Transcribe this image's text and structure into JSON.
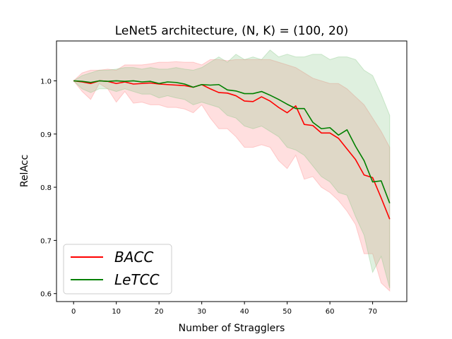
{
  "chart_data": {
    "type": "line",
    "title": "LeNet5 architecture, (N, K) = (100, 20)",
    "xlabel": "Number of Stragglers",
    "ylabel": "RelAcc",
    "xlim": [
      -4,
      78
    ],
    "ylim": [
      0.585,
      1.075
    ],
    "xticks": [
      0,
      10,
      20,
      30,
      40,
      50,
      60,
      70
    ],
    "yticks": [
      0.6,
      0.7,
      0.8,
      0.9,
      1.0
    ],
    "ytick_labels": [
      "0.6",
      "0.7",
      "0.8",
      "0.9",
      "1.0"
    ],
    "grid": false,
    "legend_position": "lower-left",
    "x": [
      0,
      2,
      4,
      6,
      8,
      10,
      12,
      14,
      16,
      18,
      20,
      22,
      24,
      26,
      28,
      30,
      32,
      34,
      36,
      38,
      40,
      42,
      44,
      46,
      48,
      50,
      52,
      54,
      56,
      58,
      60,
      62,
      64,
      66,
      68,
      70,
      72,
      74
    ],
    "series": [
      {
        "name": "BACC",
        "color": "#ff0000",
        "band_color": "#ff8080",
        "values": [
          1.0,
          0.998,
          0.995,
          1.0,
          0.999,
          0.995,
          0.998,
          0.994,
          0.995,
          0.996,
          0.994,
          0.993,
          0.992,
          0.991,
          0.988,
          0.993,
          0.985,
          0.978,
          0.977,
          0.972,
          0.962,
          0.961,
          0.97,
          0.962,
          0.95,
          0.94,
          0.953,
          0.918,
          0.916,
          0.902,
          0.902,
          0.892,
          0.872,
          0.852,
          0.823,
          0.818,
          0.78,
          0.74
        ],
        "upper": [
          1.0,
          1.015,
          1.02,
          1.02,
          1.022,
          1.02,
          1.03,
          1.03,
          1.03,
          1.032,
          1.035,
          1.035,
          1.036,
          1.035,
          1.035,
          1.03,
          1.04,
          1.04,
          1.038,
          1.04,
          1.04,
          1.04,
          1.04,
          1.04,
          1.035,
          1.03,
          1.025,
          1.015,
          1.005,
          1.0,
          0.995,
          0.995,
          0.985,
          0.97,
          0.955,
          0.93,
          0.905,
          0.875
        ],
        "lower": [
          1.0,
          0.98,
          0.965,
          0.995,
          0.985,
          0.96,
          0.98,
          0.958,
          0.96,
          0.955,
          0.955,
          0.95,
          0.95,
          0.947,
          0.94,
          0.955,
          0.93,
          0.91,
          0.91,
          0.895,
          0.875,
          0.875,
          0.88,
          0.875,
          0.85,
          0.835,
          0.86,
          0.815,
          0.82,
          0.8,
          0.79,
          0.775,
          0.755,
          0.73,
          0.675,
          0.675,
          0.62,
          0.605
        ]
      },
      {
        "name": "LeTCC",
        "color": "#008000",
        "band_color": "#7fc57f",
        "values": [
          1.0,
          0.999,
          0.997,
          1.0,
          0.999,
          1.0,
          0.999,
          1.0,
          0.998,
          0.999,
          0.995,
          0.998,
          0.997,
          0.994,
          0.988,
          0.993,
          0.992,
          0.993,
          0.983,
          0.981,
          0.976,
          0.976,
          0.98,
          0.973,
          0.965,
          0.956,
          0.948,
          0.948,
          0.922,
          0.91,
          0.912,
          0.898,
          0.908,
          0.877,
          0.85,
          0.81,
          0.812,
          0.77
        ],
        "upper": [
          1.0,
          1.01,
          1.015,
          1.02,
          1.02,
          1.022,
          1.025,
          1.025,
          1.022,
          1.025,
          1.022,
          1.022,
          1.025,
          1.022,
          1.02,
          1.025,
          1.035,
          1.045,
          1.035,
          1.05,
          1.04,
          1.045,
          1.04,
          1.058,
          1.045,
          1.05,
          1.045,
          1.045,
          1.05,
          1.05,
          1.04,
          1.045,
          1.045,
          1.04,
          1.02,
          1.01,
          0.975,
          0.935
        ],
        "lower": [
          1.0,
          0.985,
          0.978,
          0.985,
          0.985,
          0.98,
          0.985,
          0.98,
          0.975,
          0.975,
          0.968,
          0.972,
          0.968,
          0.965,
          0.955,
          0.96,
          0.955,
          0.95,
          0.935,
          0.93,
          0.915,
          0.91,
          0.915,
          0.905,
          0.895,
          0.875,
          0.87,
          0.86,
          0.84,
          0.82,
          0.81,
          0.79,
          0.785,
          0.745,
          0.71,
          0.64,
          0.67,
          0.61
        ]
      }
    ]
  }
}
